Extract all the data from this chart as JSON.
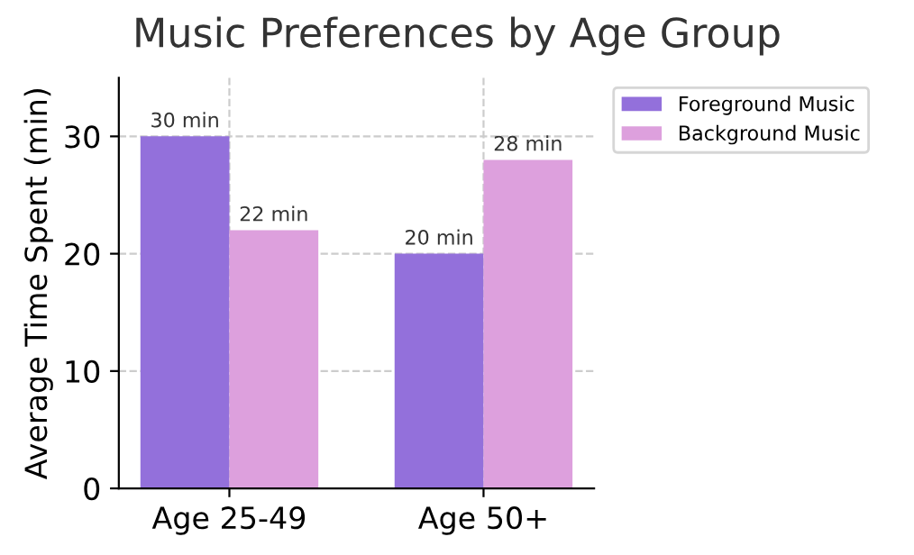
{
  "chart_data": {
    "type": "bar",
    "title": "Music Preferences by Age Group",
    "ylabel": "Average Time Spent (min)",
    "categories": [
      "Age 25-49",
      "Age 50+"
    ],
    "series": [
      {
        "name": "Foreground Music",
        "color": "#9370db",
        "values": [
          30,
          20
        ],
        "value_labels": [
          "30 min",
          "20 min"
        ]
      },
      {
        "name": "Background Music",
        "color": "#dda0dd",
        "values": [
          22,
          28
        ],
        "value_labels": [
          "22 min",
          "28 min"
        ]
      }
    ],
    "ylim": [
      0,
      35
    ],
    "yticks": [
      0,
      10,
      20,
      30
    ],
    "grid": true,
    "legend": "right"
  }
}
